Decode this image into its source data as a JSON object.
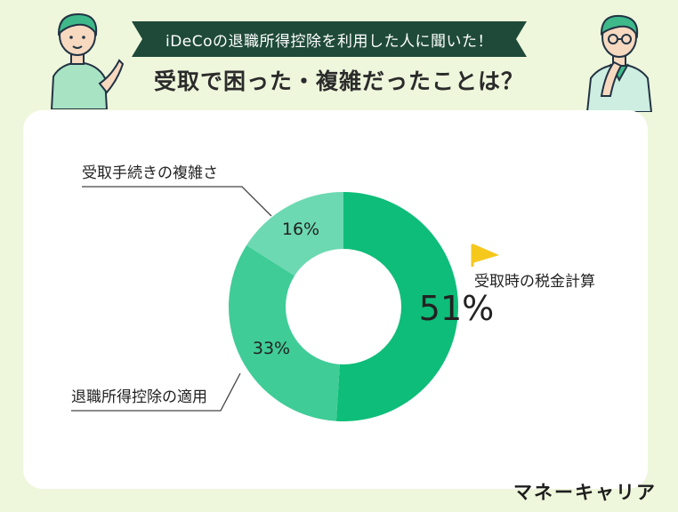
{
  "header": {
    "banner": "iDeCoの退職所得控除を利用した人に聞いた！",
    "title": "受取で困った・複雑だったことは？"
  },
  "chart_data": {
    "type": "pie",
    "donut": true,
    "slices": [
      {
        "label": "受取時の税金計算",
        "value": 51,
        "value_label": "51%",
        "color": "#0ebd79"
      },
      {
        "label": "退職所得控除の適用",
        "value": 33,
        "value_label": "33%",
        "color": "#3fcc97"
      },
      {
        "label": "受取手続きの複雑さ",
        "value": 16,
        "value_label": "16%",
        "color": "#6cd9b2"
      }
    ]
  },
  "footer": {
    "logo": "マネーキャリア"
  },
  "colors": {
    "background": "#eef7dc",
    "banner": "#1f4a3a",
    "flag": "#f6c81c"
  }
}
